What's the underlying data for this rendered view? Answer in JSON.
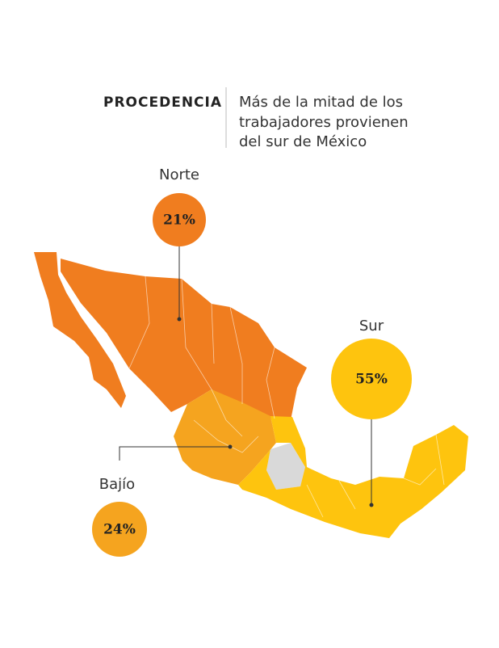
{
  "header": {
    "label": "PROCEDENCIA",
    "subtitle": [
      "Más de la mitad de los",
      "trabajadores provienen",
      "del sur de México"
    ]
  },
  "regions": [
    {
      "name": "Norte",
      "value": 21,
      "value_label": "21%",
      "color": "#f07d1f"
    },
    {
      "name": "Bajío",
      "value": 24,
      "value_label": "24%",
      "color": "#f5a41f"
    },
    {
      "name": "Sur",
      "value": 55,
      "value_label": "55%",
      "color": "#fec40e"
    }
  ]
}
